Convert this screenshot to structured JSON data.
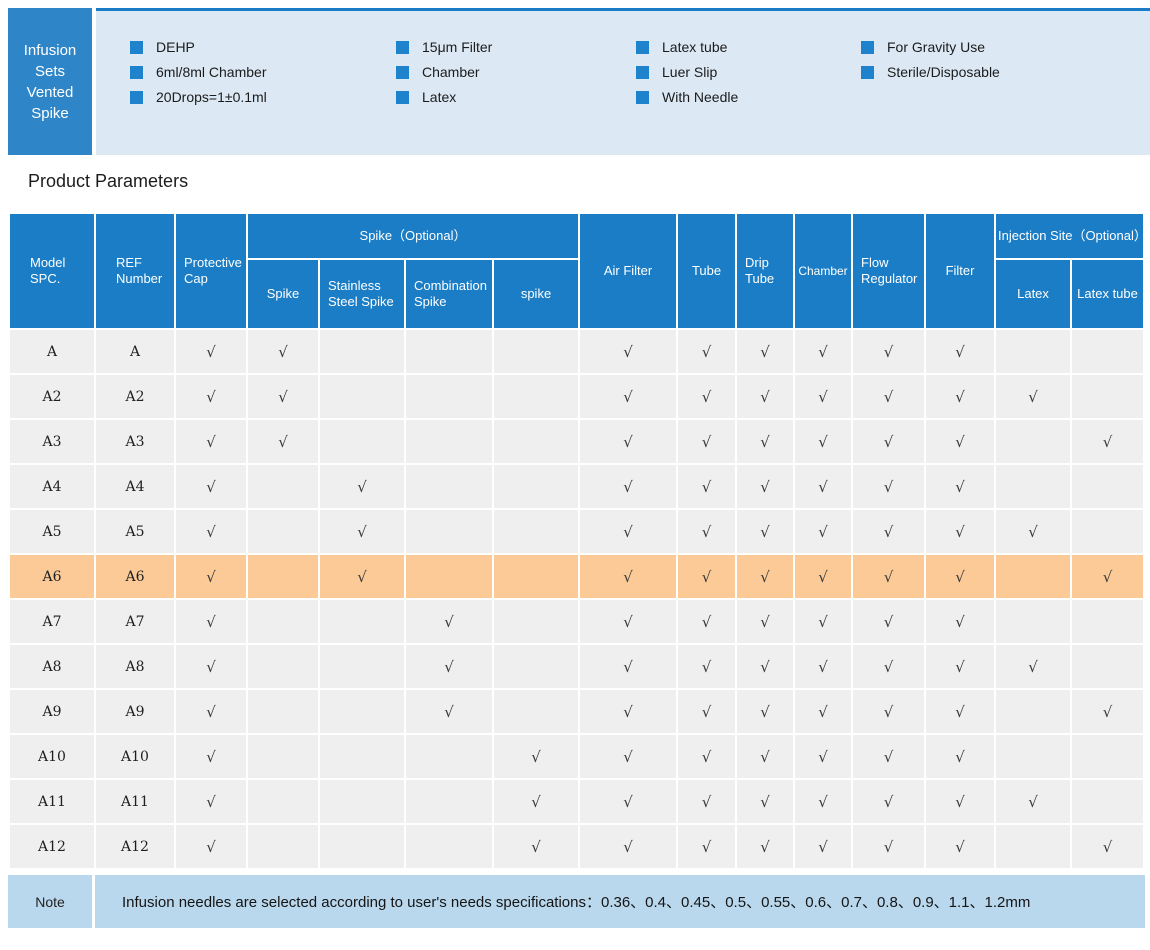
{
  "colors": {
    "table_header_blue": "#1a7dc5",
    "product_box_blue": "#2e86c9",
    "panel_light_blue": "#dce9f5",
    "bullet_blue": "#1e82cd",
    "highlight_orange": "#fbca96",
    "note_light_blue": "#bad8ed",
    "body_row_gray": "#efefef"
  },
  "header": {
    "product_box": {
      "lines": [
        "Infusion",
        "Sets",
        "Vented",
        "Spike"
      ]
    },
    "features": [
      {
        "items": [
          "DEHP",
          "6ml/8ml Chamber",
          "20Drops=1±0.1ml"
        ]
      },
      {
        "items": [
          "15μm Filter",
          "Chamber",
          "Latex"
        ]
      },
      {
        "items": [
          "Latex tube",
          "Luer Slip",
          "With Needle"
        ]
      },
      {
        "items": [
          "For Gravity Use",
          "Sterile/Disposable"
        ]
      }
    ]
  },
  "section_title": "Product Parameters",
  "table": {
    "group_headers": {
      "spike_optional": "Spike（Optional）",
      "injection_site": "Injection Site（Optional）"
    },
    "headers": {
      "model": "Model SPC.",
      "ref": "REF Number",
      "cap": "Protective Cap",
      "spike": "Spike",
      "stainless": "Stainless Steel Spike",
      "combination": "Combination Spike",
      "spike2": "spike",
      "air_filter": "Air Filter",
      "tube": "Tube",
      "drip_tube": "Drip Tube",
      "chamber": "Chamber",
      "flow_regulator": "Flow Regulator",
      "filter": "Filter",
      "latex": "Latex",
      "latex_tube": "Latex tube"
    },
    "check_symbol": "√",
    "check_columns": [
      "cap",
      "spike",
      "stainless",
      "combination",
      "spike2",
      "air_filter",
      "tube",
      "drip_tube",
      "chamber",
      "flow_regulator",
      "filter",
      "latex",
      "latex_tube"
    ],
    "rows": [
      {
        "model": "A",
        "ref": "A",
        "highlight": false,
        "checks": [
          1,
          1,
          0,
          0,
          0,
          1,
          1,
          1,
          1,
          1,
          1,
          0,
          0
        ]
      },
      {
        "model": "A2",
        "ref": "A2",
        "highlight": false,
        "checks": [
          1,
          1,
          0,
          0,
          0,
          1,
          1,
          1,
          1,
          1,
          1,
          1,
          0
        ]
      },
      {
        "model": "A3",
        "ref": "A3",
        "highlight": false,
        "checks": [
          1,
          1,
          0,
          0,
          0,
          1,
          1,
          1,
          1,
          1,
          1,
          0,
          1
        ]
      },
      {
        "model": "A4",
        "ref": "A4",
        "highlight": false,
        "checks": [
          1,
          0,
          1,
          0,
          0,
          1,
          1,
          1,
          1,
          1,
          1,
          0,
          0
        ]
      },
      {
        "model": "A5",
        "ref": "A5",
        "highlight": false,
        "checks": [
          1,
          0,
          1,
          0,
          0,
          1,
          1,
          1,
          1,
          1,
          1,
          1,
          0
        ]
      },
      {
        "model": "A6",
        "ref": "A6",
        "highlight": true,
        "checks": [
          1,
          0,
          1,
          0,
          0,
          1,
          1,
          1,
          1,
          1,
          1,
          0,
          1
        ]
      },
      {
        "model": "A7",
        "ref": "A7",
        "highlight": false,
        "checks": [
          1,
          0,
          0,
          1,
          0,
          1,
          1,
          1,
          1,
          1,
          1,
          0,
          0
        ]
      },
      {
        "model": "A8",
        "ref": "A8",
        "highlight": false,
        "checks": [
          1,
          0,
          0,
          1,
          0,
          1,
          1,
          1,
          1,
          1,
          1,
          1,
          0
        ]
      },
      {
        "model": "A9",
        "ref": "A9",
        "highlight": false,
        "checks": [
          1,
          0,
          0,
          1,
          0,
          1,
          1,
          1,
          1,
          1,
          1,
          0,
          1
        ]
      },
      {
        "model": "A10",
        "ref": "A10",
        "highlight": false,
        "checks": [
          1,
          0,
          0,
          0,
          1,
          1,
          1,
          1,
          1,
          1,
          1,
          0,
          0
        ]
      },
      {
        "model": "A11",
        "ref": "A11",
        "highlight": false,
        "checks": [
          1,
          0,
          0,
          0,
          1,
          1,
          1,
          1,
          1,
          1,
          1,
          1,
          0
        ]
      },
      {
        "model": "A12",
        "ref": "A12",
        "highlight": false,
        "checks": [
          1,
          0,
          0,
          0,
          1,
          1,
          1,
          1,
          1,
          1,
          1,
          0,
          1
        ]
      }
    ]
  },
  "note": {
    "label": "Note",
    "text": "Infusion needles are selected according to user's needs specifications：0.36、0.4、0.45、0.5、0.55、0.6、0.7、0.8、0.9、1.1、1.2mm"
  }
}
